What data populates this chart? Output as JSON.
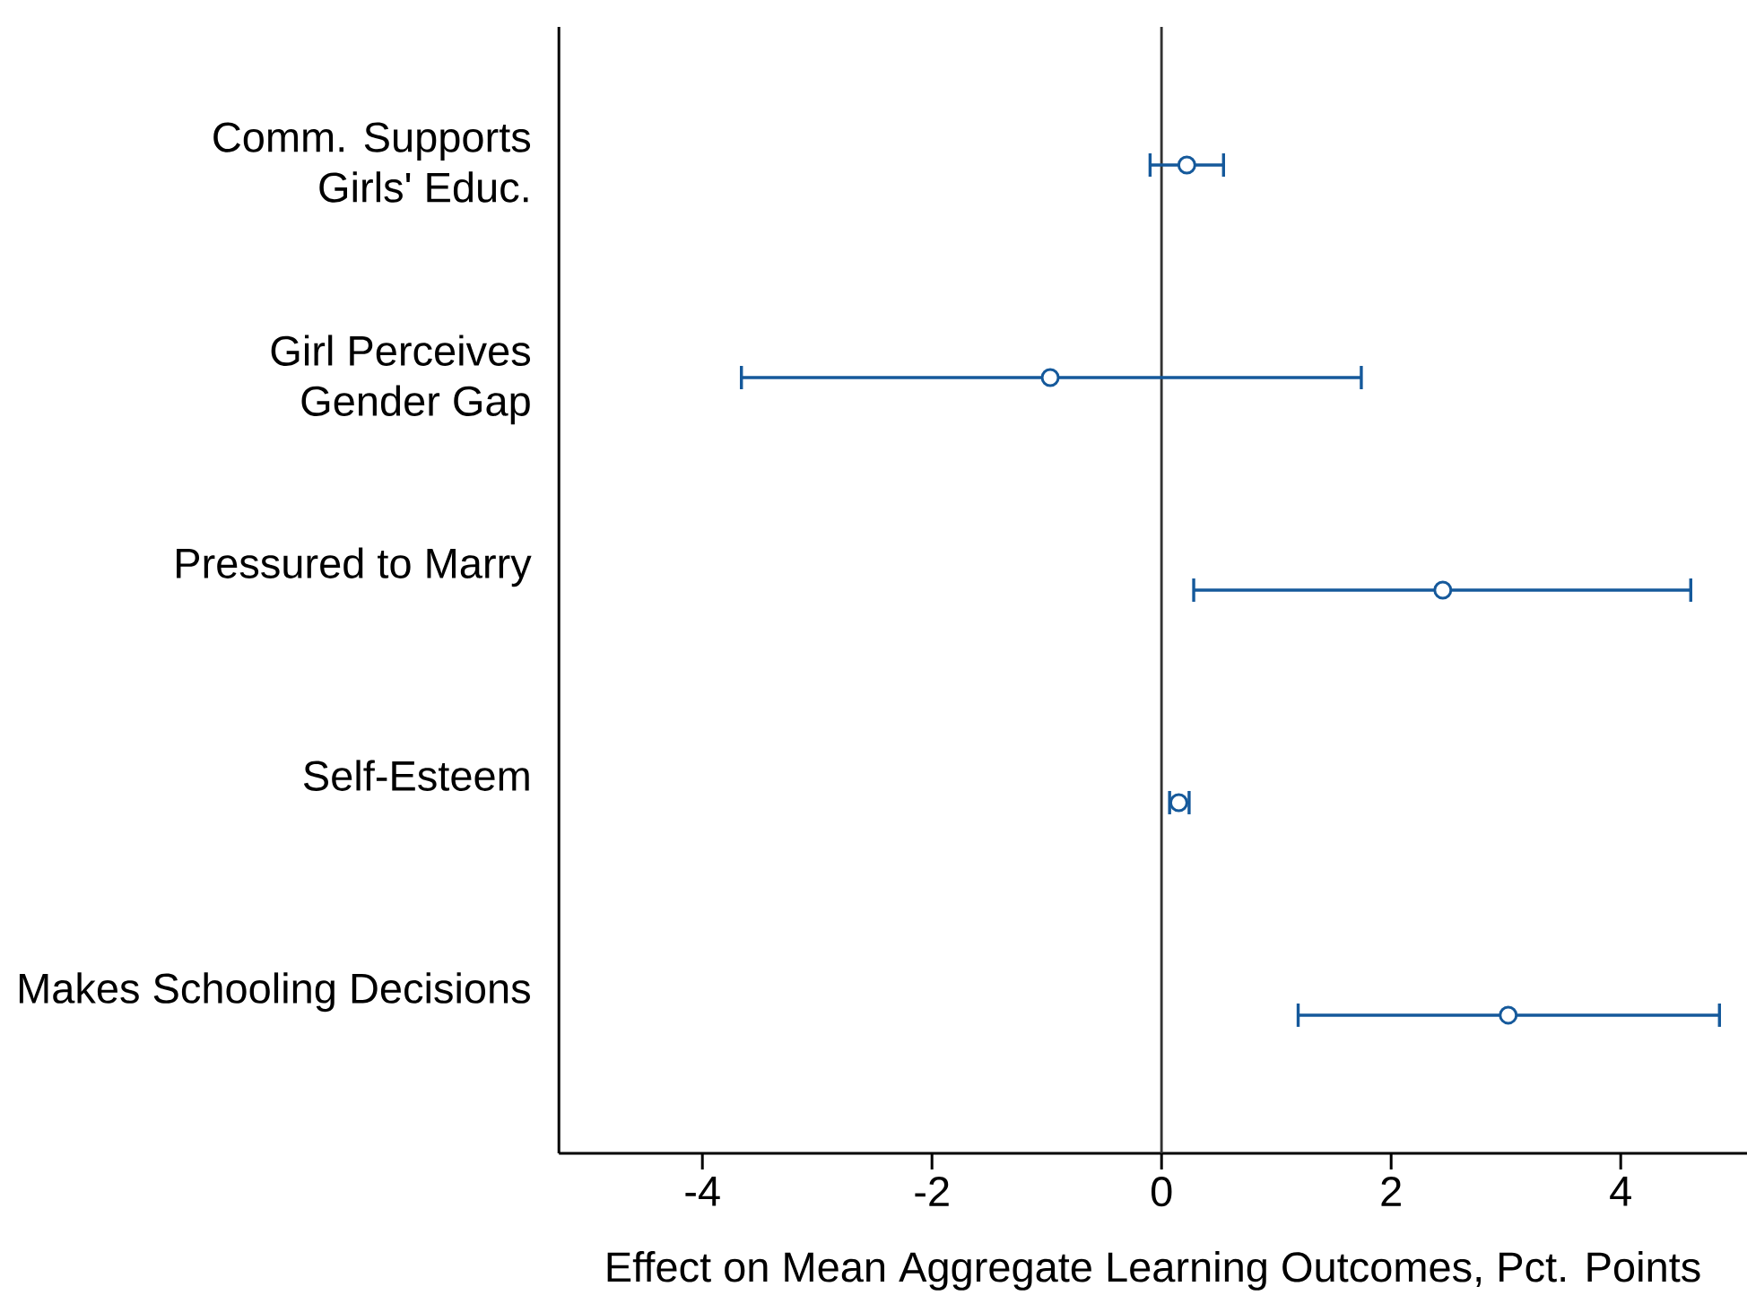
{
  "chart_data": {
    "type": "scatter",
    "orientation": "horizontal",
    "xlabel": "Effect on Mean Aggregate Learning Outcomes, Pct. Points",
    "categories": [
      "Comm. Supports\nGirls' Educ.",
      "Girl Perceives\nGender Gap",
      "Pressured to Marry",
      "Self-Esteem",
      "Makes Schooling Decisions"
    ],
    "values": [
      0.22,
      -0.97,
      2.45,
      0.15,
      3.02
    ],
    "errors": [
      [
        -0.1,
        0.54
      ],
      [
        -3.66,
        1.74
      ],
      [
        0.28,
        4.61
      ],
      [
        0.07,
        0.24
      ],
      [
        1.19,
        4.86
      ]
    ],
    "color": "#15599b",
    "marker": "circle",
    "xlim": [
      -5.25,
      5.1
    ],
    "xticks": [
      -4,
      -2,
      0,
      2,
      4
    ],
    "ref_lines": [
      {
        "axis": "x",
        "value": 0,
        "color": "#333333"
      }
    ]
  }
}
